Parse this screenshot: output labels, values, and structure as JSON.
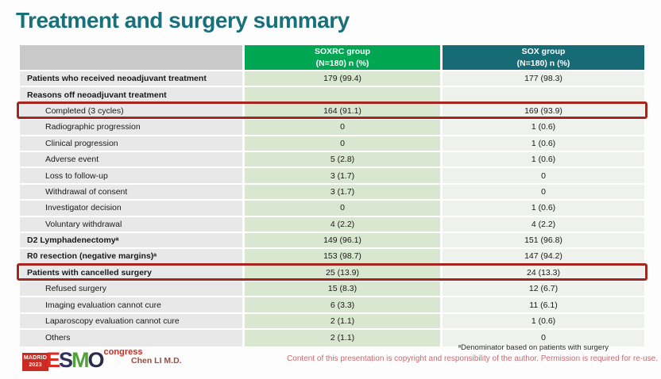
{
  "title": "Treatment and surgery summary",
  "colors": {
    "title_teal": "#17707a",
    "header_green": "#00a651",
    "header_teal": "#176b75",
    "highlight_red": "#a5261f",
    "label_cell_bg": "#e8e8e8",
    "soxrc_cell_bg": "#d9e6d0",
    "sox_cell_bg": "#eef1ec"
  },
  "table": {
    "columns": [
      {
        "line1": "SOXRC group",
        "line2": "(N=180)  n (%)"
      },
      {
        "line1": "SOX group",
        "line2": "(N=180)  n (%)"
      }
    ],
    "rows": [
      {
        "label": "Patients who received neoadjuvant treatment",
        "bold": true,
        "indent": false,
        "highlight": false,
        "soxrc": "179 (99.4)",
        "sox": "177 (98.3)"
      },
      {
        "label": "Reasons off neoadjuvant treatment",
        "bold": true,
        "indent": false,
        "highlight": false,
        "soxrc": "",
        "sox": ""
      },
      {
        "label": "Completed (3 cycles)",
        "bold": false,
        "indent": true,
        "highlight": true,
        "soxrc": "164 (91.1)",
        "sox": "169 (93.9)"
      },
      {
        "label": "Radiographic progression",
        "bold": false,
        "indent": true,
        "highlight": false,
        "soxrc": "0",
        "sox": "1 (0.6)"
      },
      {
        "label": "Clinical progression",
        "bold": false,
        "indent": true,
        "highlight": false,
        "soxrc": "0",
        "sox": "1 (0.6)"
      },
      {
        "label": "Adverse event",
        "bold": false,
        "indent": true,
        "highlight": false,
        "soxrc": "5 (2.8)",
        "sox": "1 (0.6)"
      },
      {
        "label": "Loss to follow-up",
        "bold": false,
        "indent": true,
        "highlight": false,
        "soxrc": "3 (1.7)",
        "sox": "0"
      },
      {
        "label": "Withdrawal of consent",
        "bold": false,
        "indent": true,
        "highlight": false,
        "soxrc": "3 (1.7)",
        "sox": "0"
      },
      {
        "label": "Investigator decision",
        "bold": false,
        "indent": true,
        "highlight": false,
        "soxrc": "0",
        "sox": "1 (0.6)"
      },
      {
        "label": "Voluntary withdrawal",
        "bold": false,
        "indent": true,
        "highlight": false,
        "soxrc": "4 (2.2)",
        "sox": "4 (2.2)"
      },
      {
        "label": "D2 Lymphadenectomyᵃ",
        "bold": true,
        "indent": false,
        "highlight": false,
        "soxrc": "149 (96.1)",
        "sox": "151 (96.8)"
      },
      {
        "label": "R0 resection (negative margins)ᵃ",
        "bold": true,
        "indent": false,
        "highlight": false,
        "soxrc": "153 (98.7)",
        "sox": "147 (94.2)"
      },
      {
        "label": "Patients with cancelled surgery",
        "bold": true,
        "indent": false,
        "highlight": true,
        "soxrc": "25 (13.9)",
        "sox": "24 (13.3)"
      },
      {
        "label": "Refused surgery",
        "bold": false,
        "indent": true,
        "highlight": false,
        "soxrc": "15 (8.3)",
        "sox": "12 (6.7)"
      },
      {
        "label": "Imaging evaluation cannot cure",
        "bold": false,
        "indent": true,
        "highlight": false,
        "soxrc": "6 (3.3)",
        "sox": "11 (6.1)"
      },
      {
        "label": "Laparoscopy evaluation cannot cure",
        "bold": false,
        "indent": true,
        "highlight": false,
        "soxrc": "2 (1.1)",
        "sox": "1 (0.6)"
      },
      {
        "label": "Others",
        "bold": false,
        "indent": true,
        "highlight": false,
        "soxrc": "2 (1.1)",
        "sox": "0"
      }
    ]
  },
  "footer": {
    "logo": {
      "madrid": "MADRID",
      "year": "2023",
      "congress": "congress",
      "esmo_letters": [
        {
          "ch": "E",
          "color": "#dd2c23"
        },
        {
          "ch": "S",
          "color": "#33305e"
        },
        {
          "ch": "M",
          "color": "#53a13a"
        },
        {
          "ch": "O",
          "color": "#2c2a48"
        }
      ]
    },
    "author": "Chen LI M.D.",
    "footnote": "ᵃDenominator based on patients with surgery",
    "copyright": "Content of this presentation is copyright and responsibility of the author. Permission is required for re-use."
  }
}
